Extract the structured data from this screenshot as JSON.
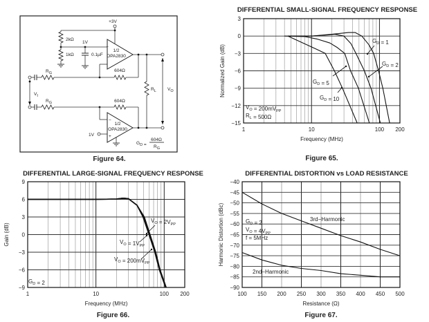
{
  "figure64": {
    "caption": "Figure 64.",
    "supply": "+3V",
    "r_top": "2kΩ",
    "r_bottom": "1kΩ",
    "bias_node": "1V",
    "cap": "0.1µF",
    "opamp_top": [
      "1/2",
      "OPA2830"
    ],
    "opamp_bottom": [
      "1/2",
      "OPA2830"
    ],
    "rf_top": "604Ω",
    "rf_bottom": "604Ω",
    "rg_top": {
      "main": "R",
      "sub": "G"
    },
    "rg_bottom": {
      "main": "R",
      "sub": "G"
    },
    "vi": {
      "main": "V",
      "sub": "I"
    },
    "rl": {
      "main": "R",
      "sub": "L"
    },
    "vo": {
      "main": "V",
      "sub": "O"
    },
    "bias_in": "1V",
    "plus": "+",
    "minus": "−",
    "gain_lhs": {
      "main": "G",
      "sub": "D",
      "rest": " = "
    },
    "gain_num": "604Ω",
    "gain_den": {
      "main": "R",
      "sub": "G"
    }
  },
  "chart_data": [
    {
      "id": "fig65",
      "type": "line",
      "title": "DIFFERENTIAL SMALL-SIGNAL FREQUENCY RESPONSE",
      "caption": "Figure 65.",
      "xlabel": "Frequency (MHz)",
      "ylabel": "Normalized Gain (dB)",
      "xscale": "log",
      "xlim": [
        1,
        200
      ],
      "ylim": [
        -15,
        3
      ],
      "xticks": [
        1,
        10,
        100,
        200
      ],
      "xtick_labels": [
        "1",
        "10",
        "100",
        "200"
      ],
      "yticks": [
        3,
        0,
        -3,
        -6,
        -9,
        -12,
        -15
      ],
      "ytick_labels": [
        "3",
        "0",
        "−3",
        "−6",
        "−9",
        "−12",
        "−15"
      ],
      "grid": true,
      "series": [
        {
          "name": "GD = 1",
          "x": [
            4.5,
            10,
            20,
            35,
            44,
            55,
            70,
            82,
            97,
            112,
            141
          ],
          "y": [
            0,
            0,
            0.3,
            0.6,
            0.6,
            0,
            -1.5,
            -3,
            -6,
            -9,
            -15
          ]
        },
        {
          "name": "GD = 2",
          "x": [
            4.5,
            10,
            18,
            22,
            30,
            38,
            45,
            60,
            75,
            103
          ],
          "y": [
            0,
            0,
            0.2,
            0.3,
            0,
            -1.3,
            -3,
            -6,
            -9,
            -15
          ]
        },
        {
          "name": "GD = 5",
          "x": [
            4,
            8,
            12,
            18.6,
            24,
            30.8,
            37.5,
            49,
            71
          ],
          "y": [
            0,
            -0.1,
            -0.5,
            -1.2,
            -2,
            -3,
            -6,
            -9,
            -15
          ]
        },
        {
          "name": "GD = 10",
          "x": [
            4.5,
            8.5,
            12,
            15.9,
            21.7,
            28.5,
            47
          ],
          "y": [
            0,
            -1.5,
            -2.3,
            -3,
            -6,
            -9,
            -15
          ]
        }
      ],
      "annotations": [
        {
          "main": "G",
          "sub": "D",
          "rest": " = 1"
        },
        {
          "main": "G",
          "sub": "D",
          "rest": " = 2"
        },
        {
          "main": "G",
          "sub": "D",
          "rest": " = 5"
        },
        {
          "main": "G",
          "sub": "D",
          "rest": " = 10"
        },
        {
          "main": "V",
          "sub": "O",
          "rest": " = 200mV",
          "sub2": "PP"
        },
        {
          "main": "R",
          "sub": "L",
          "rest": " = 500Ω"
        }
      ]
    },
    {
      "id": "fig66",
      "type": "line",
      "title": "DIFFERENTIAL LARGE-SIGNAL FREQUENCY RESPONSE",
      "caption": "Figure 66.",
      "xlabel": "Frequency (MHz)",
      "ylabel": "Gain (dB)",
      "xscale": "log",
      "xlim": [
        1,
        200
      ],
      "ylim": [
        -9,
        9
      ],
      "xticks": [
        1,
        10,
        100,
        200
      ],
      "xtick_labels": [
        "1",
        "10",
        "100",
        "200"
      ],
      "yticks": [
        9,
        6,
        3,
        0,
        -3,
        -6,
        -9
      ],
      "ytick_labels": [
        "9",
        "6",
        "3",
        "0",
        "−3",
        "−6",
        "−9"
      ],
      "grid": true,
      "series": [
        {
          "name": "VO = 2VPP",
          "x": [
            1,
            10,
            20,
            25,
            30,
            40,
            51,
            62,
            75,
            87,
            107
          ],
          "y": [
            6,
            6,
            6.05,
            6.2,
            6.1,
            5,
            3,
            0,
            -3,
            -6,
            -9
          ]
        },
        {
          "name": "VO = 1VPP",
          "x": [
            1,
            10,
            20,
            25,
            30,
            40,
            50,
            61,
            74,
            86,
            106
          ],
          "y": [
            6,
            6,
            6.05,
            6.2,
            6.1,
            5,
            3,
            0,
            -3,
            -6,
            -9
          ]
        },
        {
          "name": "VO = 200mVPP",
          "x": [
            1,
            10,
            20,
            25,
            30,
            40,
            49,
            60,
            73,
            85,
            105
          ],
          "y": [
            6,
            6,
            6.05,
            6.2,
            6.1,
            5,
            3,
            0,
            -3,
            -6,
            -9
          ]
        }
      ],
      "annotations": [
        {
          "main": "V",
          "sub": "O",
          "rest": " = 2V",
          "sub2": "PP"
        },
        {
          "main": "V",
          "sub": "O",
          "rest": " = 1V",
          "sub2": "PP"
        },
        {
          "main": "V",
          "sub": "O",
          "rest": " = 200mV",
          "sub2": "PP"
        },
        {
          "main": "G",
          "sub": "D",
          "rest": " = 2"
        }
      ]
    },
    {
      "id": "fig67",
      "type": "line",
      "title": "DIFFERENTIAL DISTORTION vs LOAD RESISTANCE",
      "caption": "Figure 67.",
      "xlabel": "Resistance (Ω)",
      "ylabel": "Harmonic Distortion (dBc)",
      "xscale": "linear",
      "xlim": [
        100,
        500
      ],
      "ylim": [
        -90,
        -40
      ],
      "xticks": [
        100,
        150,
        200,
        250,
        300,
        350,
        400,
        450,
        500
      ],
      "xtick_labels": [
        "100",
        "150",
        "200",
        "250",
        "300",
        "350",
        "400",
        "450",
        "500"
      ],
      "yticks": [
        -40,
        -45,
        -50,
        -55,
        -60,
        -65,
        -70,
        -75,
        -80,
        -85,
        -90
      ],
      "ytick_labels": [
        "−40",
        "−45",
        "−50",
        "−55",
        "−60",
        "−65",
        "−70",
        "−75",
        "−80",
        "−85",
        "−90"
      ],
      "grid": true,
      "series": [
        {
          "name": "3rd−Harmonic",
          "x": [
            100,
            150,
            200,
            250,
            300,
            350,
            400,
            450,
            500
          ],
          "y": [
            -45,
            -50.5,
            -55,
            -58.5,
            -62,
            -65.5,
            -68.5,
            -72,
            -75
          ]
        },
        {
          "name": "2nd−Harmonic",
          "x": [
            100,
            150,
            200,
            250,
            300,
            350,
            400,
            450,
            500
          ],
          "y": [
            -73.5,
            -77,
            -79.5,
            -81,
            -82,
            -83.5,
            -84.2,
            -85,
            -85
          ]
        }
      ],
      "annotations": [
        {
          "main": "3rd−Harmonic"
        },
        {
          "main": "2nd−Harmonic"
        },
        {
          "main": "G",
          "sub": "D",
          "rest": " = 2"
        },
        {
          "main": "V",
          "sub": "O",
          "rest": " = 4V",
          "sub2": "PP"
        },
        {
          "main": "f = 5MHz"
        }
      ]
    }
  ]
}
